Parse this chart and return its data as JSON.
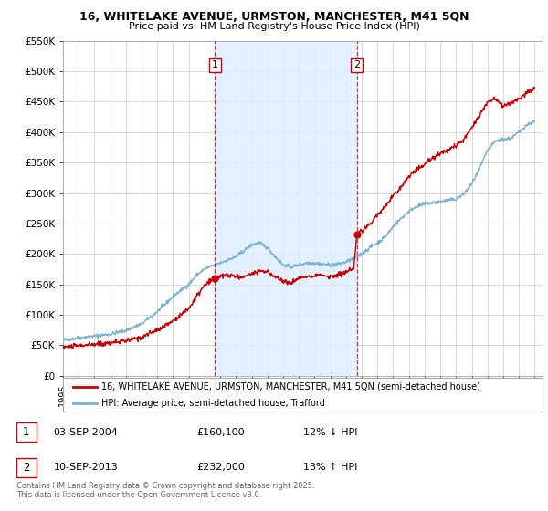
{
  "title_line1": "16, WHITELAKE AVENUE, URMSTON, MANCHESTER, M41 5QN",
  "title_line2": "Price paid vs. HM Land Registry's House Price Index (HPI)",
  "ylim": [
    0,
    550000
  ],
  "yticks": [
    0,
    50000,
    100000,
    150000,
    200000,
    250000,
    300000,
    350000,
    400000,
    450000,
    500000,
    550000
  ],
  "ytick_labels": [
    "£0",
    "£50K",
    "£100K",
    "£150K",
    "£200K",
    "£250K",
    "£300K",
    "£350K",
    "£400K",
    "£450K",
    "£500K",
    "£550K"
  ],
  "xlim_start": 1995.0,
  "xlim_end": 2025.5,
  "xtick_years": [
    1995,
    1996,
    1997,
    1998,
    1999,
    2000,
    2001,
    2002,
    2003,
    2004,
    2005,
    2006,
    2007,
    2008,
    2009,
    2010,
    2011,
    2012,
    2013,
    2014,
    2015,
    2016,
    2017,
    2018,
    2019,
    2020,
    2021,
    2022,
    2023,
    2024,
    2025
  ],
  "sale1_x": 2004.67,
  "sale1_y": 160100,
  "sale1_label": "1",
  "sale2_x": 2013.69,
  "sale2_y": 232000,
  "sale2_label": "2",
  "property_line_color": "#cc0000",
  "hpi_line_color": "#7ab0d4",
  "sale_marker_color": "#cc0000",
  "vline_color": "#cc0000",
  "grid_color": "#cccccc",
  "legend_label_property": "16, WHITELAKE AVENUE, URMSTON, MANCHESTER, M41 5QN (semi-detached house)",
  "legend_label_hpi": "HPI: Average price, semi-detached house, Trafford",
  "table_entry1_num": "1",
  "table_entry1_date": "03-SEP-2004",
  "table_entry1_price": "£160,100",
  "table_entry1_hpi": "12% ↓ HPI",
  "table_entry2_num": "2",
  "table_entry2_date": "10-SEP-2013",
  "table_entry2_price": "£232,000",
  "table_entry2_hpi": "13% ↑ HPI",
  "footer_text": "Contains HM Land Registry data © Crown copyright and database right 2025.\nThis data is licensed under the Open Government Licence v3.0.",
  "highlight_rect_color": "#ddeeff"
}
